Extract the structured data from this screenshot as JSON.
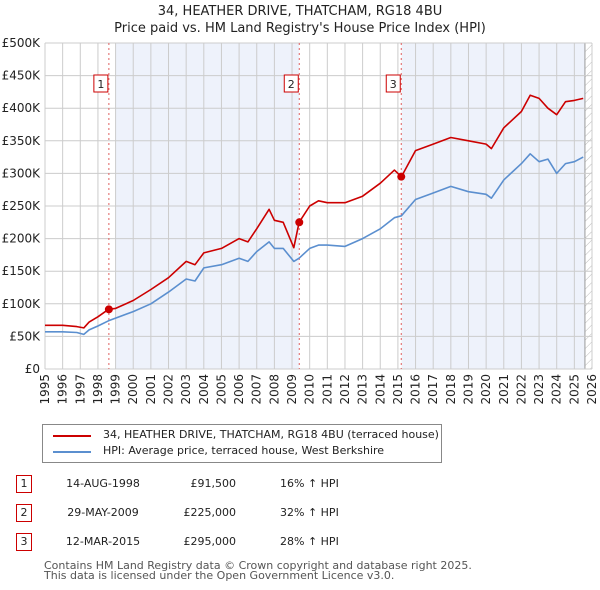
{
  "header": {
    "title": "34, HEATHER DRIVE, THATCHAM, RG18 4BU",
    "subtitle": "Price paid vs. HM Land Registry's House Price Index (HPI)"
  },
  "colors": {
    "property": "#cc0000",
    "hpi": "#5b8fcf",
    "shade": "#eef2fb",
    "grid": "#cccccc",
    "sale_line": "#e06060"
  },
  "chart_data": {
    "type": "line",
    "title": "Price paid vs. HM Land Registry's House Price Index (HPI)",
    "xlabel": "",
    "ylabel": "",
    "xlim": [
      1995,
      2026
    ],
    "ylim": [
      0,
      500000
    ],
    "grid": true,
    "legend_position": "below",
    "y_ticks": [
      0,
      50000,
      100000,
      150000,
      200000,
      250000,
      300000,
      350000,
      400000,
      450000,
      500000
    ],
    "y_tick_labels": [
      "£0",
      "£50K",
      "£100K",
      "£150K",
      "£200K",
      "£250K",
      "£300K",
      "£350K",
      "£400K",
      "£450K",
      "£500K"
    ],
    "x_ticks": [
      1995,
      1996,
      1997,
      1998,
      1999,
      2000,
      2001,
      2002,
      2003,
      2004,
      2005,
      2006,
      2007,
      2008,
      2009,
      2010,
      2011,
      2012,
      2013,
      2014,
      2015,
      2016,
      2017,
      2018,
      2019,
      2020,
      2021,
      2022,
      2023,
      2024,
      2025,
      2026
    ],
    "x_tick_labels": [
      "1995",
      "1996",
      "1997",
      "1998",
      "1999",
      "2000",
      "2001",
      "2002",
      "2003",
      "2004",
      "2005",
      "2006",
      "2007",
      "2008",
      "2009",
      "2010",
      "2011",
      "2012",
      "2013",
      "2014",
      "2015",
      "2016",
      "2017",
      "2018",
      "2019",
      "2020",
      "2021",
      "2022",
      "2023",
      "2024",
      "2025",
      "2026"
    ],
    "shaded_ranges": [
      [
        1999.0,
        2009.4
      ],
      [
        2015.2,
        2025.6
      ]
    ],
    "hatched_range": [
      2025.6,
      2026
    ],
    "series": [
      {
        "name": "34, HEATHER DRIVE, THATCHAM, RG18 4BU (terraced house)",
        "color": "#cc0000",
        "x": [
          1995.0,
          1996.0,
          1996.8,
          1997.2,
          1997.5,
          1998.0,
          1998.6,
          1999.0,
          2000.0,
          2001.0,
          2002.0,
          2003.0,
          2003.5,
          2004.0,
          2005.0,
          2006.0,
          2006.5,
          2007.0,
          2007.7,
          2008.0,
          2008.5,
          2009.1,
          2009.4,
          2010.0,
          2010.5,
          2011.0,
          2012.0,
          2013.0,
          2014.0,
          2014.8,
          2015.2,
          2016.0,
          2017.0,
          2018.0,
          2019.0,
          2020.0,
          2020.3,
          2021.0,
          2022.0,
          2022.5,
          2023.0,
          2023.5,
          2024.0,
          2024.5,
          2025.0,
          2025.5
        ],
        "values": [
          67000,
          67000,
          65000,
          63000,
          72000,
          80000,
          91500,
          93000,
          105000,
          122000,
          140000,
          165000,
          160000,
          178000,
          185000,
          200000,
          195000,
          215000,
          245000,
          228000,
          225000,
          186000,
          225000,
          250000,
          258000,
          255000,
          255000,
          265000,
          285000,
          305000,
          295000,
          335000,
          345000,
          355000,
          350000,
          345000,
          338000,
          370000,
          395000,
          420000,
          415000,
          400000,
          390000,
          410000,
          412000,
          415000
        ]
      },
      {
        "name": "HPI: Average price, terraced house, West Berkshire",
        "color": "#5b8fcf",
        "x": [
          1995.0,
          1996.0,
          1996.8,
          1997.2,
          1997.5,
          1998.0,
          1998.6,
          1999.0,
          2000.0,
          2001.0,
          2002.0,
          2003.0,
          2003.5,
          2004.0,
          2005.0,
          2006.0,
          2006.5,
          2007.0,
          2007.7,
          2008.0,
          2008.5,
          2009.1,
          2009.4,
          2010.0,
          2010.5,
          2011.0,
          2012.0,
          2013.0,
          2014.0,
          2014.8,
          2015.2,
          2016.0,
          2017.0,
          2018.0,
          2019.0,
          2020.0,
          2020.3,
          2021.0,
          2022.0,
          2022.5,
          2023.0,
          2023.5,
          2024.0,
          2024.5,
          2025.0,
          2025.5
        ],
        "values": [
          57000,
          57000,
          56000,
          53000,
          60000,
          66000,
          74000,
          78000,
          88000,
          100000,
          118000,
          138000,
          135000,
          155000,
          160000,
          170000,
          165000,
          180000,
          195000,
          185000,
          185000,
          165000,
          170000,
          185000,
          190000,
          190000,
          188000,
          200000,
          215000,
          232000,
          235000,
          260000,
          270000,
          280000,
          272000,
          268000,
          262000,
          290000,
          315000,
          330000,
          318000,
          322000,
          300000,
          315000,
          318000,
          325000
        ]
      }
    ],
    "sales": [
      {
        "label": "1",
        "x": 1998.62,
        "value": 91500
      },
      {
        "label": "2",
        "x": 2009.41,
        "value": 225000
      },
      {
        "label": "3",
        "x": 2015.19,
        "value": 295000
      }
    ]
  },
  "legend": {
    "items": [
      {
        "label": "34, HEATHER DRIVE, THATCHAM, RG18 4BU (terraced house)"
      },
      {
        "label": "HPI: Average price, terraced house, West Berkshire"
      }
    ]
  },
  "table": {
    "rows": [
      {
        "num": "1",
        "date": "14-AUG-1998",
        "price": "£91,500",
        "hpi": "16% ↑ HPI"
      },
      {
        "num": "2",
        "date": "29-MAY-2009",
        "price": "£225,000",
        "hpi": "32% ↑ HPI"
      },
      {
        "num": "3",
        "date": "12-MAR-2015",
        "price": "£295,000",
        "hpi": "28% ↑ HPI"
      }
    ]
  },
  "footer": {
    "line1": "Contains HM Land Registry data © Crown copyright and database right 2025.",
    "line2": "This data is licensed under the Open Government Licence v3.0."
  }
}
